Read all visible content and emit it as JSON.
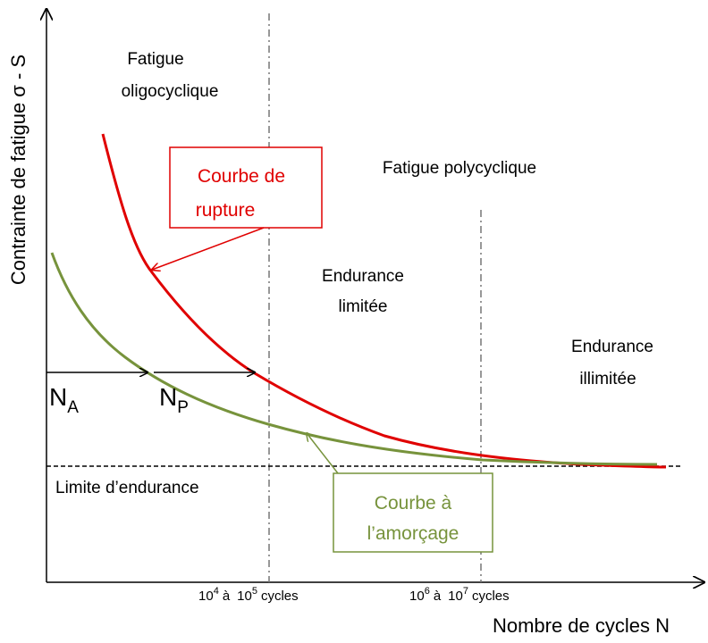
{
  "axes": {
    "y_label": "Contrainte de fatigue σ - S",
    "x_label": "Nombre de cycles N"
  },
  "regions": {
    "low_cycle": [
      "Fatigue",
      "oligocyclique"
    ],
    "high_cycle": "Fatigue polycyclique",
    "limited": [
      "Endurance",
      "limitée"
    ],
    "unlimited": [
      "Endurance",
      "illimitée"
    ]
  },
  "curves": {
    "rupture": [
      "Courbe de",
      "rupture"
    ],
    "initiation": [
      "Courbe à",
      "l’amorçage"
    ]
  },
  "endurance_limit": "Limite d’endurance",
  "phases": {
    "initiation": {
      "base": "N",
      "sub": "A"
    },
    "propagation": {
      "base": "N",
      "sub": "P"
    }
  },
  "cycle_marks": [
    {
      "from_base": "10",
      "from_exp": "4",
      "joiner": "à",
      "to_base": "10",
      "to_exp": "5",
      "unit": "cycles"
    },
    {
      "from_base": "10",
      "from_exp": "6",
      "joiner": "à",
      "to_base": "10",
      "to_exp": "7",
      "unit": "cycles"
    }
  ]
}
